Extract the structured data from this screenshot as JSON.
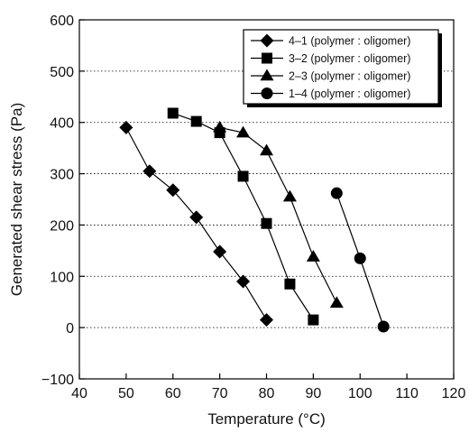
{
  "chart_data": {
    "type": "line",
    "xlabel": "Temperature (°C)",
    "ylabel": "Generated shear stress (Pa)",
    "xlim": [
      40,
      120
    ],
    "ylim": [
      -100,
      600
    ],
    "xticks": [
      "40",
      "50",
      "60",
      "70",
      "80",
      "90",
      "100",
      "110",
      "120"
    ],
    "yticks": [
      "−100",
      "0",
      "100",
      "200",
      "300",
      "400",
      "500",
      "600"
    ],
    "grid": "horizontal dotted",
    "legend_position": "top-right",
    "series": [
      {
        "name": "4–1 (polymer : oligomer)",
        "marker": "diamond",
        "x": [
          50,
          55,
          60,
          65,
          70,
          75,
          80
        ],
        "y": [
          390,
          305,
          268,
          215,
          148,
          90,
          15
        ]
      },
      {
        "name": "3–2 (polymer : oligomer)",
        "marker": "square",
        "x": [
          60,
          65,
          70,
          75,
          80,
          85,
          90
        ],
        "y": [
          418,
          402,
          380,
          295,
          203,
          85,
          15
        ]
      },
      {
        "name": "2–3 (polymer : oligomer)",
        "marker": "triangle",
        "x": [
          70,
          75,
          80,
          85,
          90,
          95
        ],
        "y": [
          390,
          380,
          345,
          255,
          138,
          48
        ]
      },
      {
        "name": "1–4 (polymer : oligomer)",
        "marker": "circle",
        "x": [
          95,
          100,
          105
        ],
        "y": [
          262,
          135,
          2
        ]
      }
    ]
  }
}
